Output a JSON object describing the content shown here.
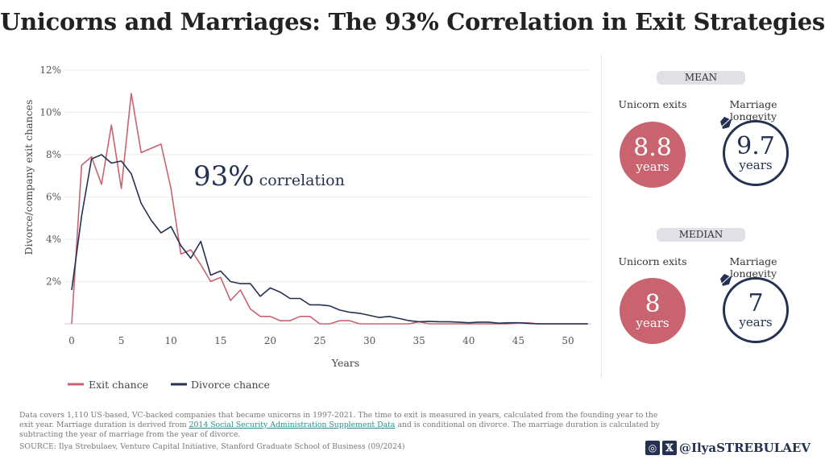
{
  "title": "Unicorns and Marriages: The 93% Correlation in Exit Strategies",
  "chart_data": {
    "type": "line",
    "title": "",
    "xlabel": "Years",
    "ylabel": "Divorce/company exit chances",
    "xlim": [
      0,
      52.5
    ],
    "ylim": [
      0,
      12
    ],
    "x_ticks": [
      0,
      5,
      10,
      15,
      20,
      25,
      30,
      35,
      40,
      45,
      50
    ],
    "y_ticks": [
      2,
      4,
      6,
      8,
      10,
      12
    ],
    "y_tick_labels": [
      "2%",
      "4%",
      "6%",
      "8%",
      "10%",
      "12%"
    ],
    "grid": true,
    "legend_position": "bottom-left",
    "annotation": {
      "value": "93%",
      "text": "correlation"
    },
    "x": [
      0,
      1,
      2,
      3,
      4,
      5,
      6,
      7,
      8,
      9,
      10,
      11,
      12,
      13,
      14,
      15,
      16,
      17,
      18,
      19,
      20,
      21,
      22,
      23,
      24,
      25,
      26,
      27,
      28,
      29,
      30,
      31,
      32,
      33,
      34,
      35,
      36,
      37,
      38,
      39,
      40,
      41,
      42,
      43,
      44,
      45,
      46,
      47,
      48,
      49,
      50,
      51,
      52
    ],
    "series": [
      {
        "name": "Exit chance",
        "color": "#c96370",
        "values": [
          0,
          7.5,
          7.9,
          6.6,
          9.4,
          6.4,
          10.9,
          8.1,
          8.3,
          8.5,
          6.4,
          3.3,
          3.5,
          2.8,
          2.0,
          2.2,
          1.1,
          1.6,
          0.7,
          0.35,
          0.35,
          0.15,
          0.15,
          0.35,
          0.35,
          0,
          0,
          0.15,
          0.15,
          0,
          0,
          0,
          0,
          0,
          0,
          0.1,
          0,
          0,
          0,
          0,
          0,
          0,
          0,
          0,
          0,
          0.05,
          0.05,
          0,
          0,
          0,
          0,
          0,
          0
        ]
      },
      {
        "name": "Divorce chance",
        "color": "#243152",
        "values": [
          1.6,
          5.1,
          7.8,
          8.0,
          7.6,
          7.7,
          7.1,
          5.7,
          4.9,
          4.3,
          4.6,
          3.7,
          3.1,
          3.9,
          2.3,
          2.5,
          2.0,
          1.9,
          1.9,
          1.3,
          1.7,
          1.5,
          1.2,
          1.2,
          0.9,
          0.9,
          0.85,
          0.65,
          0.55,
          0.5,
          0.4,
          0.3,
          0.35,
          0.25,
          0.15,
          0.1,
          0.12,
          0.1,
          0.1,
          0.08,
          0.05,
          0.08,
          0.08,
          0.03,
          0.05,
          0.05,
          0.02,
          0,
          0,
          0,
          0,
          0,
          0
        ]
      }
    ]
  },
  "panel": {
    "mean": {
      "label": "MEAN",
      "exit_label": "Unicorn exits",
      "marriage_label": "Marriage longevity",
      "exit_value": "8.8",
      "marriage_value": "9.7",
      "unit": "years"
    },
    "median": {
      "label": "MEDIAN",
      "exit_label": "Unicorn exits",
      "marriage_label": "Marriage longevity",
      "exit_value": "8",
      "marriage_value": "7",
      "unit": "years"
    }
  },
  "footer": {
    "note_1": "Data covers 1,110 US-based, VC-backed companies that became unicorns in 1997-2021.  The time to exit is measured in years, calculated from the founding year to the exit year. Marriage duration is derived from ",
    "note_link": "2014 Social Security Administration Supplement Data",
    "note_2": " and is conditional on divorce. The marriage duration is calculated by subtracting the year of marriage from the year of divorce.",
    "source": "SOURCE: Ilya Strebulaev, Venture Capital Initiative, Stanford Graduate School of Business (09/2024)",
    "handle": "@IlyaSTREBULAEV"
  }
}
